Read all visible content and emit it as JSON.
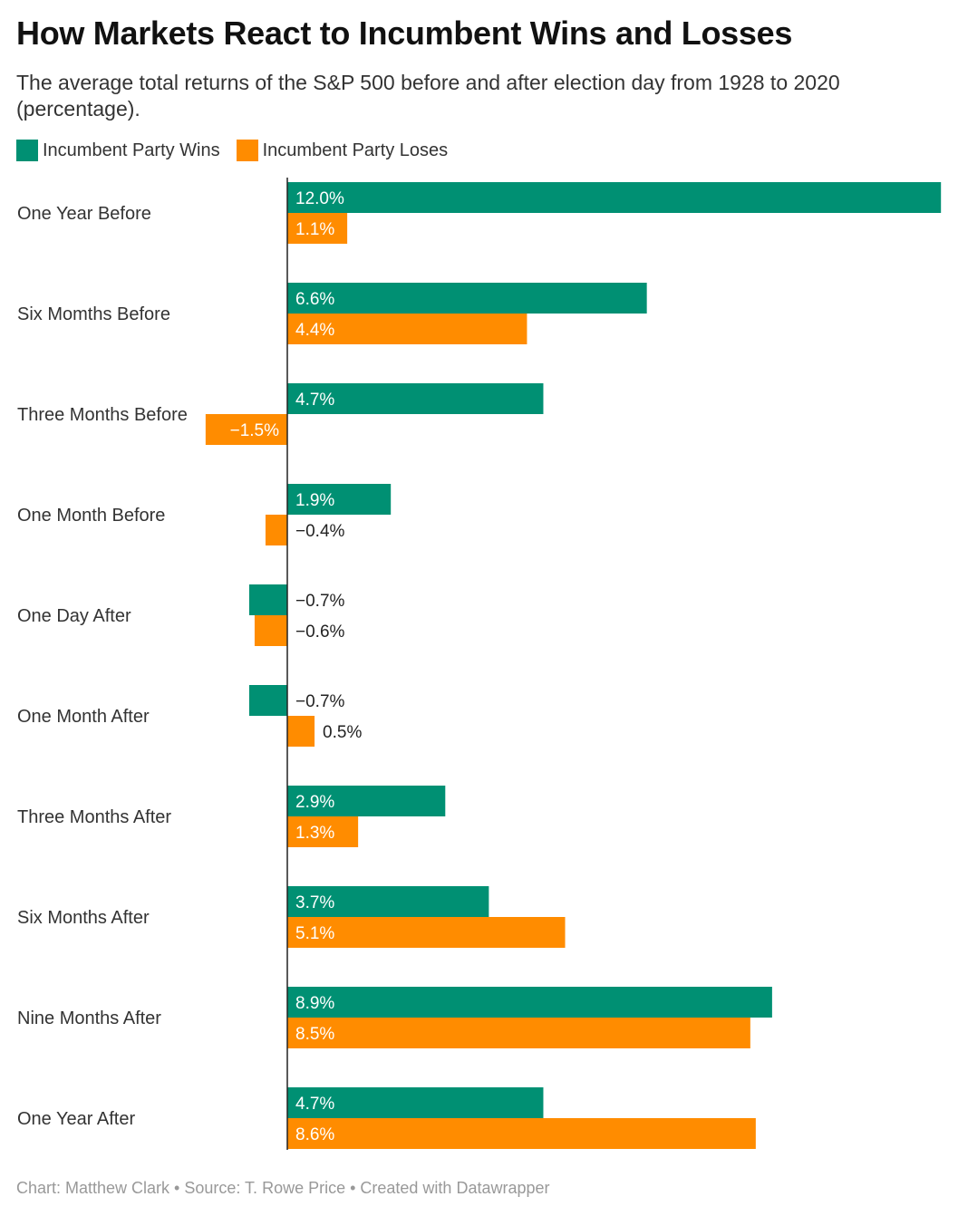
{
  "title": "How Markets React to Incumbent Wins and Losses",
  "subtitle": "The average total returns of the S&P 500 before and after election day from 1928 to 2020 (percentage).",
  "legend": [
    {
      "label": "Incumbent Party Wins",
      "color": "#009073"
    },
    {
      "label": "Incumbent Party Loses",
      "color": "#FF8C00"
    }
  ],
  "footer": "Chart: Matthew Clark • Source: T. Rowe Price • Created with Datawrapper",
  "chart_data": {
    "type": "bar",
    "orientation": "horizontal",
    "title": "How Markets React to Incumbent Wins and Losses",
    "categories": [
      "One Year Before",
      "Six Momths Before",
      "Three Months Before",
      "One Month Before",
      "One Day After",
      "One Month After",
      "Three Months After",
      "Six Months After",
      "Nine Months After",
      "One Year After"
    ],
    "series": [
      {
        "name": "Incumbent Party Wins",
        "color": "#009073",
        "values": [
          12.0,
          6.6,
          4.7,
          1.9,
          -0.7,
          -0.7,
          2.9,
          3.7,
          8.9,
          4.7
        ],
        "labels": [
          "12.0%",
          "6.6%",
          "4.7%",
          "1.9%",
          "−0.7%",
          "−0.7%",
          "2.9%",
          "3.7%",
          "8.9%",
          "4.7%"
        ]
      },
      {
        "name": "Incumbent Party Loses",
        "color": "#FF8C00",
        "values": [
          1.1,
          4.4,
          -1.5,
          -0.4,
          -0.6,
          0.5,
          1.3,
          5.1,
          8.5,
          8.6
        ],
        "labels": [
          "1.1%",
          "4.4%",
          "−1.5%",
          "−0.4%",
          "−0.6%",
          "0.5%",
          "1.3%",
          "5.1%",
          "8.5%",
          "8.6%"
        ]
      }
    ],
    "xlim": [
      -1.5,
      12.0
    ],
    "grid": false,
    "legend_position": "top-left"
  }
}
